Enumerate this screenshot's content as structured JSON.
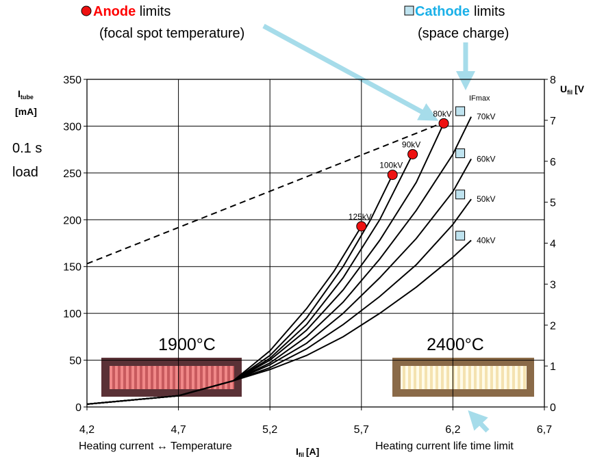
{
  "chart_data": {
    "type": "line",
    "xlim": [
      4.2,
      6.7
    ],
    "xticks": [
      {
        "value": 4.2,
        "label": "4,2"
      },
      {
        "value": 4.7,
        "label": "4,7"
      },
      {
        "value": 5.2,
        "label": "5,2"
      },
      {
        "value": 5.7,
        "label": "5,7"
      },
      {
        "value": 6.2,
        "label": "6,2"
      },
      {
        "value": 6.7,
        "label": "6,7"
      }
    ],
    "ylim": [
      0,
      350
    ],
    "yticks": [
      0,
      50,
      100,
      150,
      200,
      250,
      300,
      350
    ],
    "y2lim": [
      0,
      8
    ],
    "y2ticks": [
      0,
      1,
      2,
      3,
      4,
      5,
      6,
      7,
      8
    ],
    "grid": true,
    "color": "#000000",
    "ylabel": {
      "main": "I",
      "sub": "tube",
      "unit": "[mA]"
    },
    "y2label": {
      "main": "U",
      "sub": "fil",
      "unit": "[V"
    },
    "xlabel": {
      "main": "I",
      "sub": "fil",
      "unit": "[A]"
    },
    "x_note_left": "Heating current ↔ Temperature",
    "x_note_right": "Heating current life time limit",
    "load_note": [
      "0.1 s",
      "load"
    ],
    "anode_header": {
      "name": "Anode",
      "rest": " limits",
      "sub": "(focal spot temperature)",
      "color": "#ff0000"
    },
    "cathode_header": {
      "name": "Cathode",
      "rest": "limits",
      "sub": "(space charge)",
      "color": "#1ab0e8"
    },
    "ifmax_label": "IFmax",
    "temp_labels": [
      "1900°C",
      "2400°C"
    ],
    "series": [
      {
        "name": "125kV",
        "x": [
          4.2,
          4.7,
          5.0,
          5.2,
          5.4,
          5.55,
          5.7
        ],
        "values": [
          3,
          12,
          28,
          60,
          105,
          145,
          193
        ]
      },
      {
        "name": "100kV",
        "x": [
          4.2,
          4.7,
          5.0,
          5.2,
          5.4,
          5.6,
          5.75,
          5.87
        ],
        "values": [
          3,
          12,
          28,
          55,
          95,
          150,
          200,
          248
        ]
      },
      {
        "name": "90kV",
        "x": [
          4.2,
          4.7,
          5.0,
          5.2,
          5.4,
          5.6,
          5.8,
          5.98
        ],
        "values": [
          3,
          12,
          28,
          52,
          88,
          138,
          200,
          270
        ]
      },
      {
        "name": "80kV",
        "x": [
          4.2,
          4.7,
          5.0,
          5.2,
          5.4,
          5.6,
          5.8,
          6.0,
          6.15
        ],
        "values": [
          3,
          12,
          28,
          50,
          82,
          125,
          178,
          240,
          303
        ]
      },
      {
        "name": "70kV",
        "x": [
          4.2,
          4.7,
          5.0,
          5.2,
          5.4,
          5.6,
          5.8,
          6.0,
          6.2,
          6.3
        ],
        "values": [
          3,
          12,
          28,
          47,
          75,
          112,
          158,
          210,
          270,
          310
        ]
      },
      {
        "name": "60kV",
        "x": [
          4.2,
          4.7,
          5.0,
          5.2,
          5.4,
          5.6,
          5.8,
          6.0,
          6.2,
          6.3
        ],
        "values": [
          3,
          12,
          28,
          45,
          68,
          100,
          138,
          180,
          230,
          265
        ]
      },
      {
        "name": "50kV",
        "x": [
          4.2,
          4.7,
          5.0,
          5.2,
          5.4,
          5.6,
          5.8,
          6.0,
          6.2,
          6.3
        ],
        "values": [
          3,
          12,
          28,
          42,
          62,
          88,
          118,
          152,
          195,
          222
        ]
      },
      {
        "name": "40kV",
        "x": [
          4.2,
          4.7,
          5.0,
          5.2,
          5.4,
          5.6,
          5.8,
          6.0,
          6.2,
          6.3
        ],
        "values": [
          3,
          12,
          28,
          40,
          55,
          75,
          100,
          128,
          160,
          178
        ]
      }
    ],
    "dashed_line": {
      "x": [
        4.2,
        6.15
      ],
      "values": [
        153,
        304
      ],
      "style": "dashed"
    },
    "anode_points": {
      "x": [
        5.7,
        5.87,
        5.98,
        6.15
      ],
      "values": [
        193,
        248,
        270,
        303
      ],
      "color": "#ee1111"
    },
    "cathode_points": {
      "x": [
        6.24,
        6.24,
        6.24,
        6.24
      ],
      "values": [
        316,
        271,
        227,
        183
      ],
      "color": "#bfe3ef"
    }
  }
}
